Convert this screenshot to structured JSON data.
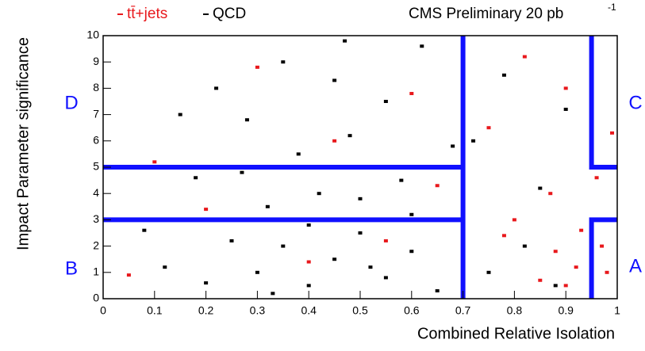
{
  "chart_data": {
    "type": "scatter",
    "title": "CMS Preliminary 20 pb",
    "title_superscript": "-1",
    "x_label": "Combined Relative Isolation",
    "y_label": "Impact Parameter significance",
    "xlim": [
      0,
      1
    ],
    "ylim": [
      0,
      10
    ],
    "xticks": [
      0,
      0.1,
      0.2,
      0.3,
      0.4,
      0.5,
      0.6,
      0.7,
      0.8,
      0.9,
      1
    ],
    "yticks": [
      0,
      1,
      2,
      3,
      4,
      5,
      6,
      7,
      8,
      9,
      10
    ],
    "series": [
      {
        "name": "tt̄+jets",
        "color": "#e8181c",
        "x": [
          0.9,
          0.92,
          0.95,
          0.97,
          0.88,
          0.85,
          0.93,
          0.98,
          0.8,
          0.87,
          0.96,
          0.75,
          0.9,
          0.82,
          0.6,
          0.45,
          0.3,
          0.55,
          0.4,
          0.2,
          0.1,
          0.05,
          0.99,
          0.78,
          0.65
        ],
        "values": [
          0.5,
          1.2,
          0.3,
          2,
          1.8,
          0.7,
          2.6,
          1,
          3,
          4,
          4.6,
          6.5,
          8,
          9.2,
          7.8,
          6,
          8.8,
          2.2,
          1.4,
          3.4,
          5.2,
          0.9,
          6.3,
          2.4,
          4.3
        ]
      },
      {
        "name": "QCD",
        "color": "#000000",
        "x": [
          0.3,
          0.35,
          0.4,
          0.45,
          0.5,
          0.55,
          0.6,
          0.65,
          0.25,
          0.2,
          0.32,
          0.42,
          0.5,
          0.58,
          0.38,
          0.48,
          0.28,
          0.55,
          0.45,
          0.35,
          0.62,
          0.22,
          0.18,
          0.12,
          0.08,
          0.15,
          0.72,
          0.78,
          0.82,
          0.75,
          0.85,
          0.68,
          0.4,
          0.52,
          0.33,
          0.6,
          0.27,
          0.47,
          0.9,
          0.88
        ],
        "values": [
          1,
          2,
          0.5,
          1.5,
          2.5,
          0.8,
          1.8,
          0.3,
          2.2,
          0.6,
          3.5,
          4,
          3.8,
          4.5,
          5.5,
          6.2,
          6.8,
          7.5,
          8.3,
          9,
          9.6,
          8,
          4.6,
          1.2,
          2.6,
          7,
          6,
          8.5,
          2,
          1,
          4.2,
          5.8,
          2.8,
          1.2,
          0.2,
          3.2,
          4.8,
          9.8,
          7.2,
          0.5
        ]
      }
    ],
    "boundary_color": "#1010ff",
    "boundaries": [
      {
        "x": [
          0,
          0.7
        ],
        "y": [
          5,
          5
        ]
      },
      {
        "x": [
          0,
          0.7
        ],
        "y": [
          3,
          3
        ]
      },
      {
        "x": [
          0.7,
          0.7
        ],
        "y": [
          10,
          0
        ]
      },
      {
        "x": [
          0.95,
          0.95,
          1
        ],
        "y": [
          10,
          5,
          5
        ]
      },
      {
        "x": [
          1,
          0.95,
          0.95
        ],
        "y": [
          3,
          3,
          0
        ]
      }
    ],
    "region_labels": [
      "A",
      "B",
      "C",
      "D"
    ]
  }
}
